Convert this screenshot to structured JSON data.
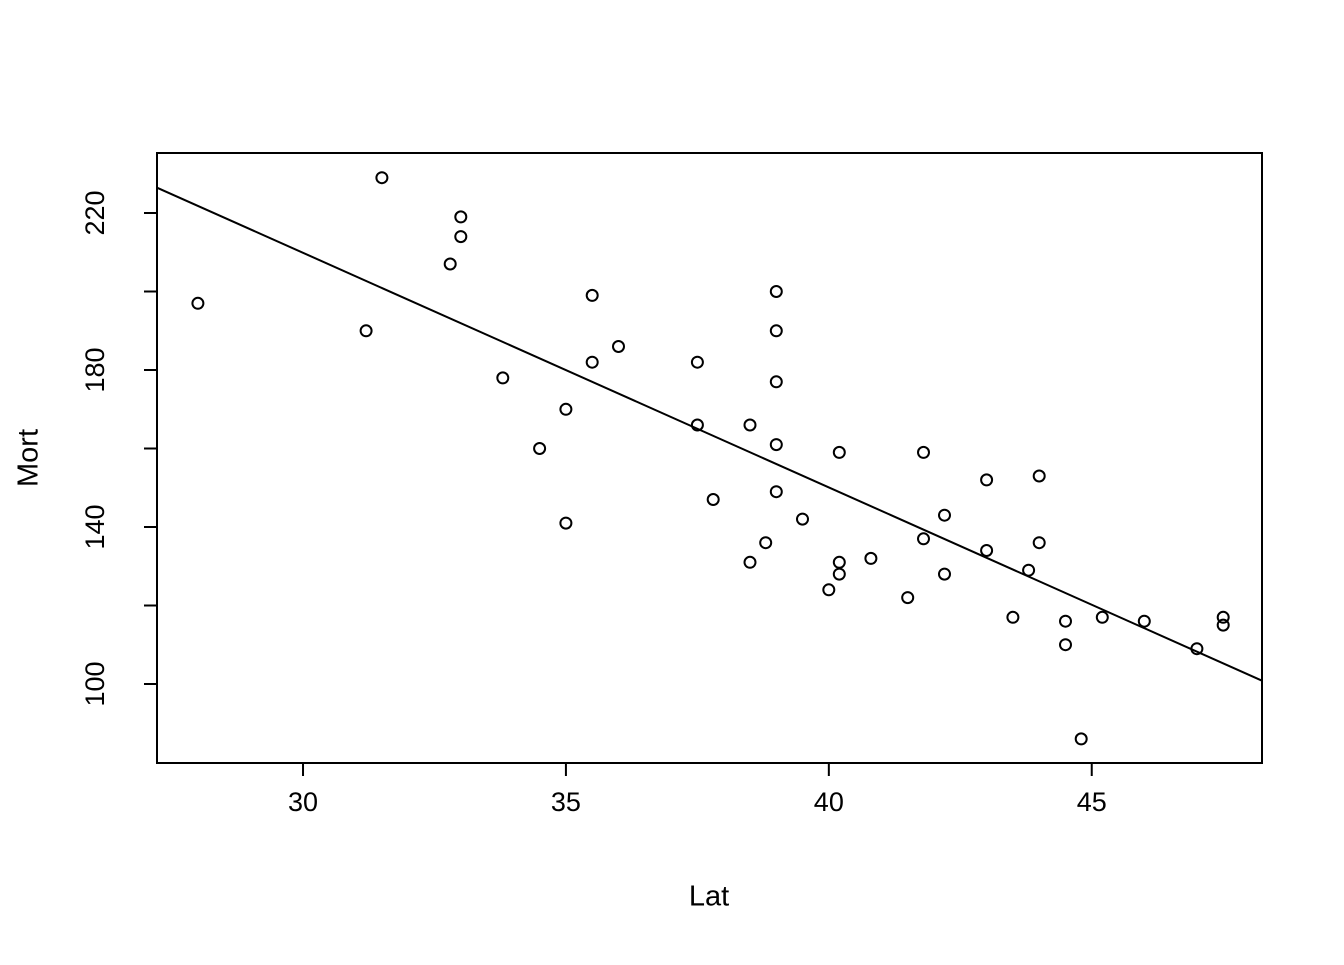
{
  "chart_data": {
    "type": "scatter",
    "title": "",
    "xlabel": "Lat",
    "ylabel": "Mort",
    "x_ticks": [
      30,
      35,
      40,
      45
    ],
    "y_ticks": [
      100,
      120,
      140,
      160,
      180,
      200,
      220
    ],
    "y_labeled_ticks": [
      100,
      140,
      180,
      220
    ],
    "xlim": [
      27.223,
      48.238
    ],
    "ylim": [
      79.87,
      235.29
    ],
    "grid": false,
    "legend": "none",
    "point_style": "open-circle",
    "colors": {
      "points": "#000000",
      "line": "#000000",
      "axis": "#000000",
      "background": "#ffffff"
    },
    "regression_line": {
      "intercept": 389.19,
      "slope": -5.9776
    },
    "points": [
      {
        "lat": 28.0,
        "mort": 197
      },
      {
        "lat": 31.2,
        "mort": 190
      },
      {
        "lat": 31.5,
        "mort": 229
      },
      {
        "lat": 32.8,
        "mort": 207
      },
      {
        "lat": 33.0,
        "mort": 219
      },
      {
        "lat": 33.0,
        "mort": 214
      },
      {
        "lat": 33.8,
        "mort": 178
      },
      {
        "lat": 34.5,
        "mort": 160
      },
      {
        "lat": 35.0,
        "mort": 170
      },
      {
        "lat": 35.0,
        "mort": 141
      },
      {
        "lat": 35.5,
        "mort": 199
      },
      {
        "lat": 35.5,
        "mort": 182
      },
      {
        "lat": 36.0,
        "mort": 186
      },
      {
        "lat": 37.5,
        "mort": 182
      },
      {
        "lat": 37.5,
        "mort": 166
      },
      {
        "lat": 37.8,
        "mort": 147
      },
      {
        "lat": 38.5,
        "mort": 166
      },
      {
        "lat": 38.5,
        "mort": 131
      },
      {
        "lat": 38.8,
        "mort": 136
      },
      {
        "lat": 39.0,
        "mort": 200
      },
      {
        "lat": 39.0,
        "mort": 190
      },
      {
        "lat": 39.0,
        "mort": 177
      },
      {
        "lat": 39.0,
        "mort": 161
      },
      {
        "lat": 39.0,
        "mort": 149
      },
      {
        "lat": 39.5,
        "mort": 142
      },
      {
        "lat": 40.0,
        "mort": 124
      },
      {
        "lat": 40.2,
        "mort": 159
      },
      {
        "lat": 40.2,
        "mort": 131
      },
      {
        "lat": 40.2,
        "mort": 128
      },
      {
        "lat": 40.8,
        "mort": 132
      },
      {
        "lat": 41.5,
        "mort": 122
      },
      {
        "lat": 41.8,
        "mort": 159
      },
      {
        "lat": 41.8,
        "mort": 137
      },
      {
        "lat": 42.2,
        "mort": 143
      },
      {
        "lat": 42.2,
        "mort": 128
      },
      {
        "lat": 43.0,
        "mort": 152
      },
      {
        "lat": 43.0,
        "mort": 134
      },
      {
        "lat": 43.5,
        "mort": 117
      },
      {
        "lat": 43.8,
        "mort": 129
      },
      {
        "lat": 44.0,
        "mort": 153
      },
      {
        "lat": 44.0,
        "mort": 136
      },
      {
        "lat": 44.5,
        "mort": 116
      },
      {
        "lat": 44.5,
        "mort": 110
      },
      {
        "lat": 44.8,
        "mort": 86
      },
      {
        "lat": 45.2,
        "mort": 117
      },
      {
        "lat": 46.0,
        "mort": 116
      },
      {
        "lat": 47.0,
        "mort": 109
      },
      {
        "lat": 47.5,
        "mort": 117
      },
      {
        "lat": 47.5,
        "mort": 115
      }
    ]
  }
}
